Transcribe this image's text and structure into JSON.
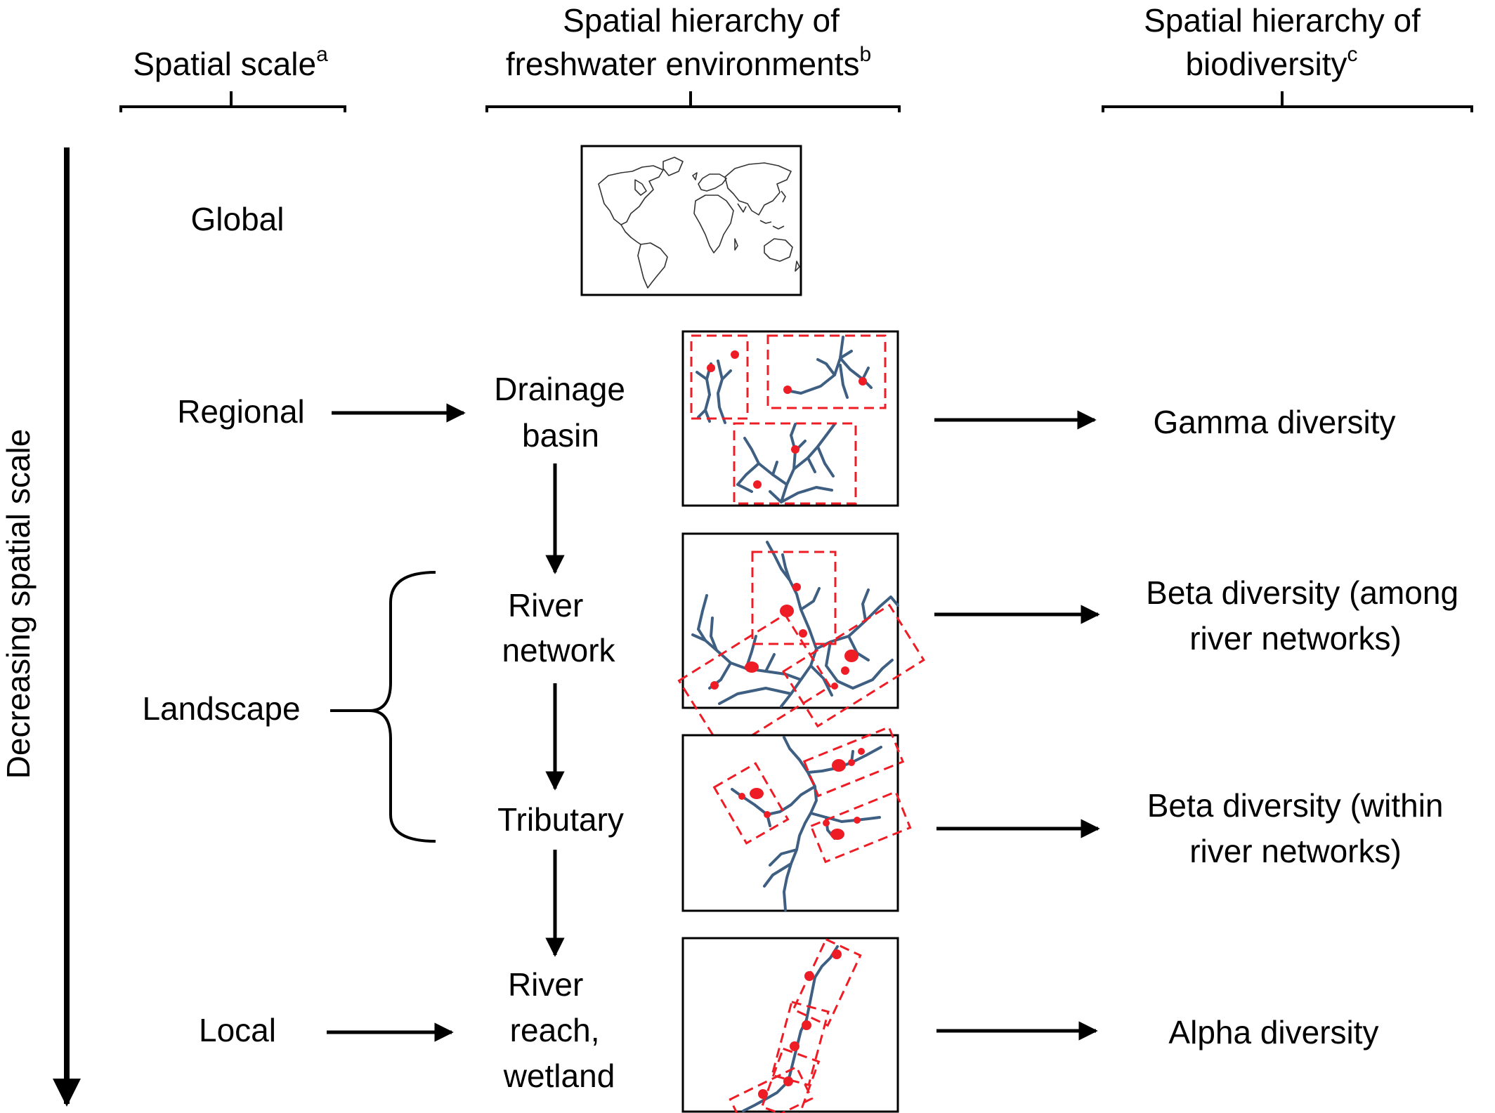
{
  "headers": {
    "scale": {
      "text": "Spatial scale",
      "sup": "a"
    },
    "environments": {
      "line1": "Spatial hierarchy of",
      "line2": "freshwater environments",
      "sup": "b"
    },
    "biodiversity": {
      "line1": "Spatial hierarchy of",
      "line2": "biodiversity",
      "sup": "c"
    }
  },
  "axis_label": "Decreasing spatial scale",
  "scales": {
    "global": "Global",
    "regional": "Regional",
    "landscape": "Landscape",
    "local": "Local"
  },
  "environments": {
    "drainage_basin": [
      "Drainage",
      "basin"
    ],
    "river_network": [
      "River",
      "network"
    ],
    "tributary": [
      "Tributary"
    ],
    "river_reach": [
      "River",
      "reach,",
      "wetland"
    ]
  },
  "diversity": {
    "gamma": [
      "Gamma diversity"
    ],
    "beta_among": [
      "Beta diversity (among",
      "river networks)"
    ],
    "beta_within": [
      "Beta diversity (within",
      "river networks)"
    ],
    "alpha": [
      "Alpha diversity"
    ]
  },
  "colors": {
    "river": "#3e5f82",
    "sample": "#ee1c25"
  },
  "icons": {
    "world_map": "world-map-icon"
  }
}
